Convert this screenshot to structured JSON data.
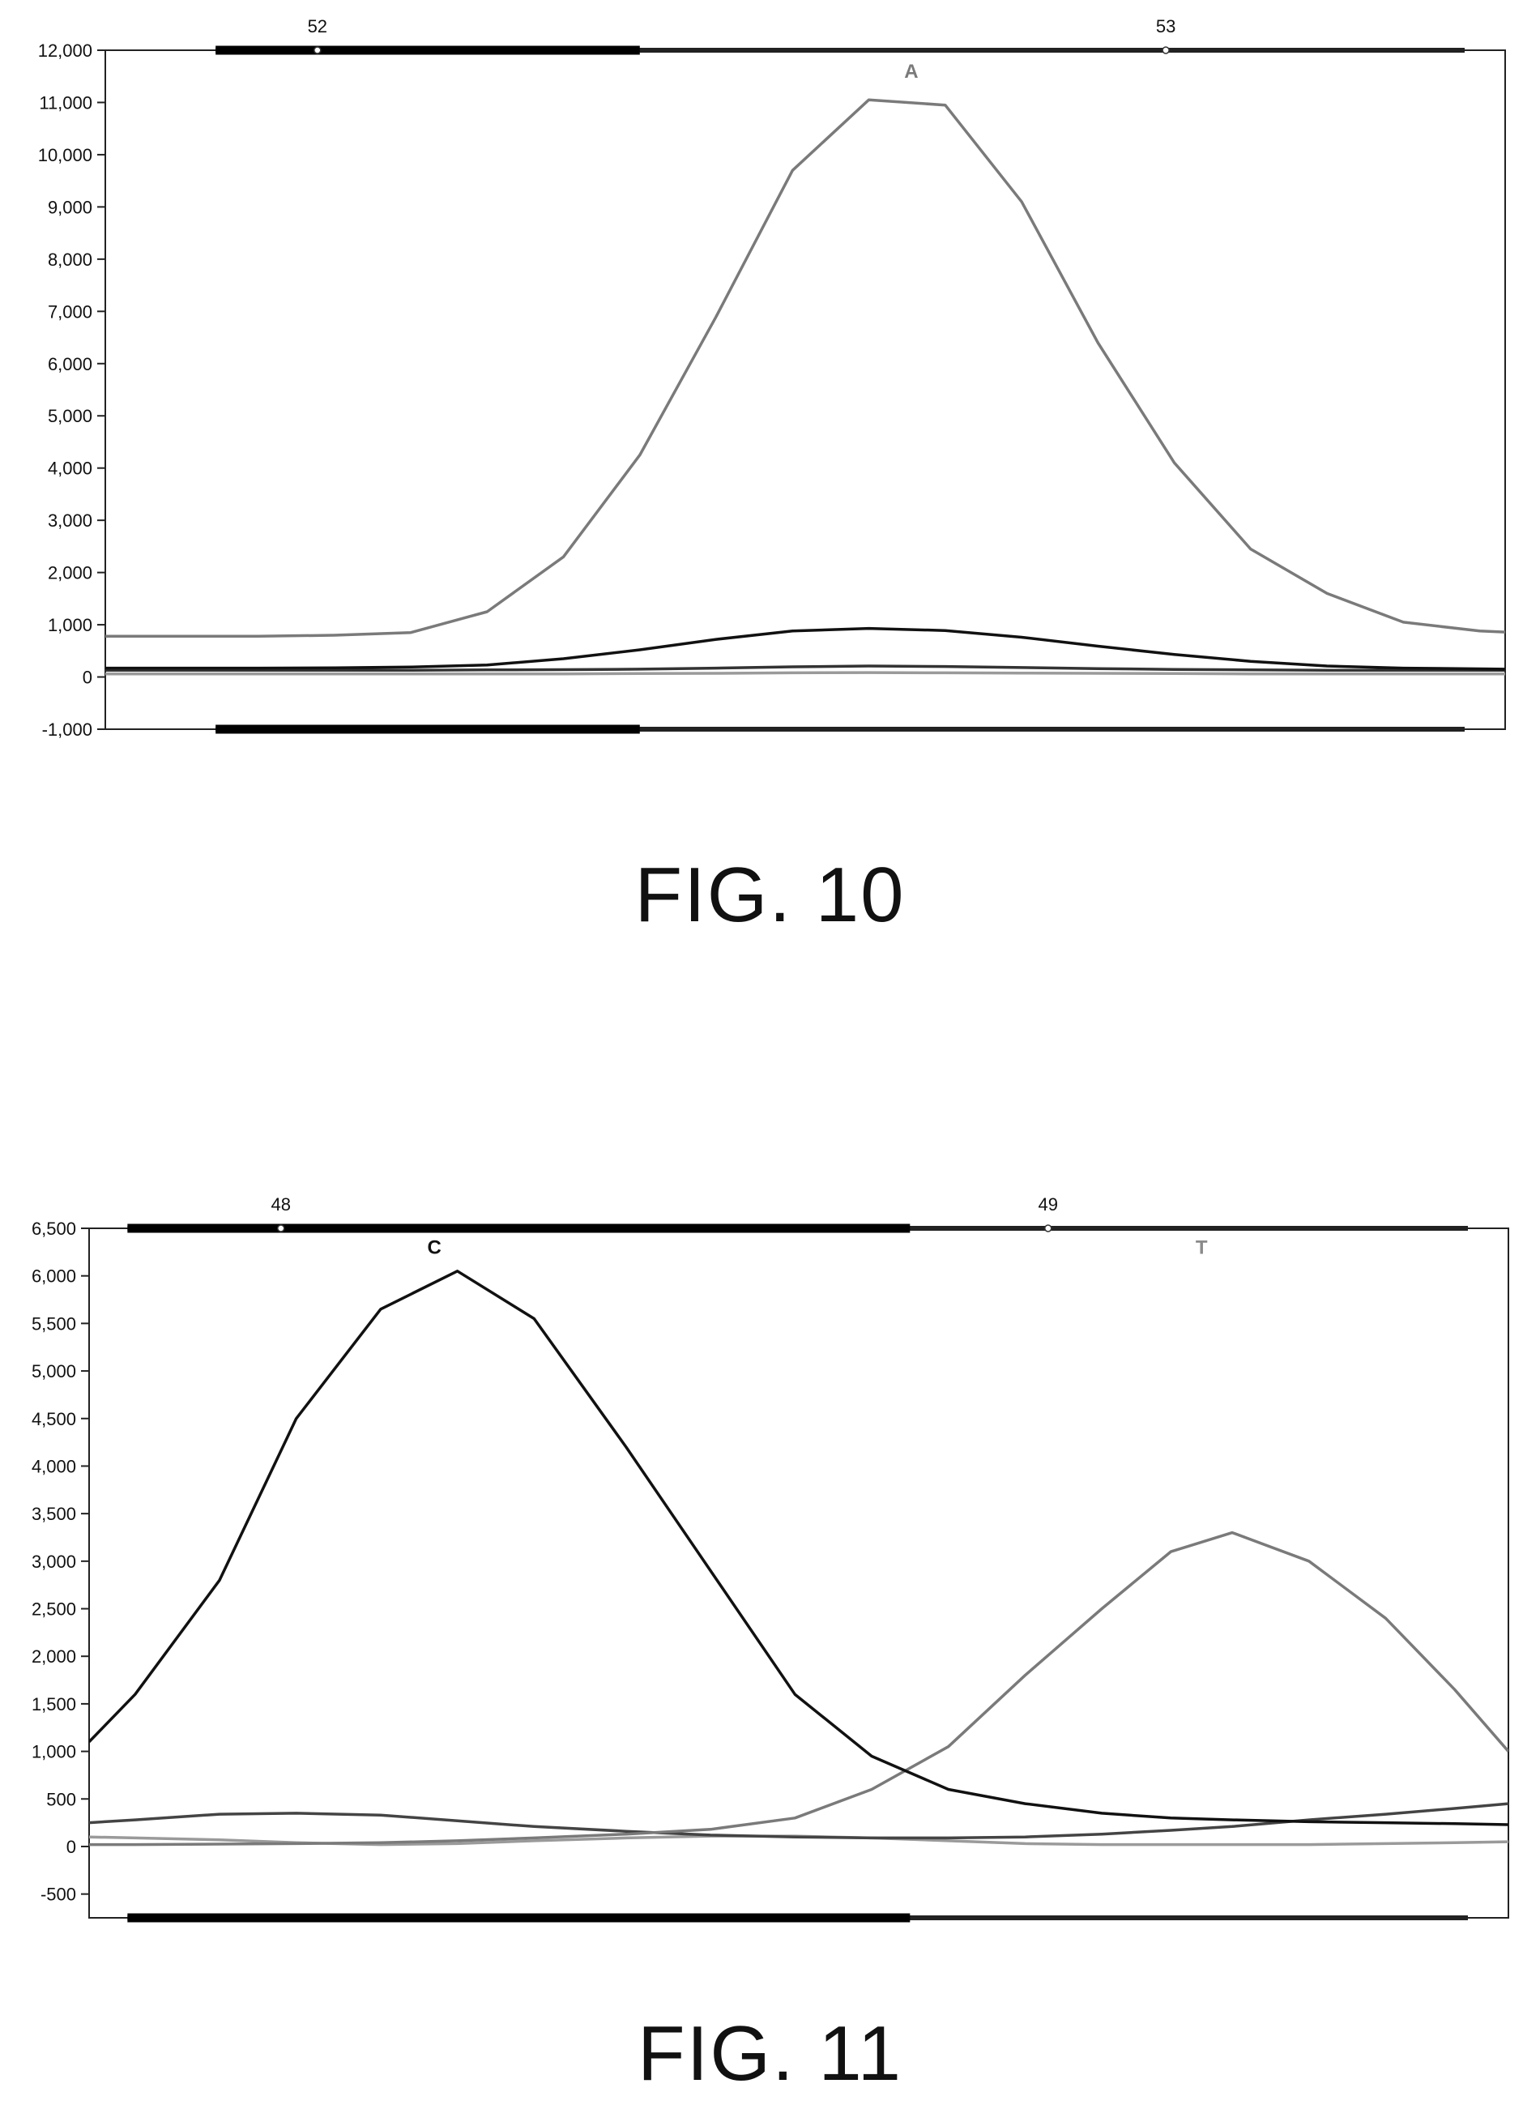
{
  "figures": [
    {
      "caption": "FIG. 10"
    },
    {
      "caption": "FIG. 11"
    }
  ],
  "chart_data": [
    {
      "type": "line",
      "title": "",
      "xlabel": "",
      "ylabel": "",
      "ylim": [
        -1000,
        12000
      ],
      "yticks": [
        -1000,
        0,
        1000,
        2000,
        3000,
        4000,
        5000,
        6000,
        7000,
        8000,
        9000,
        10000,
        11000,
        12000
      ],
      "ytick_labels": [
        "-1,000",
        "0",
        "1,000",
        "2,000",
        "3,000",
        "4,000",
        "5,000",
        "6,000",
        "7,000",
        "8,000",
        "9,000",
        "10,000",
        "11,000",
        "12,000"
      ],
      "top_axis": {
        "labels": [
          "52",
          "53"
        ],
        "xlim": [
          51.75,
          53.4
        ],
        "positions": [
          52.0,
          53.0
        ],
        "thick_band": [
          51.88,
          52.38
        ]
      },
      "peak_labels": [
        {
          "text": "A",
          "x": 52.7,
          "y": 11600,
          "color": "#7a7a7a"
        }
      ],
      "grid": false,
      "x": [
        51.75,
        51.84,
        51.93,
        52.02,
        52.11,
        52.2,
        52.29,
        52.38,
        52.47,
        52.56,
        52.65,
        52.74,
        52.83,
        52.92,
        53.01,
        53.1,
        53.19,
        53.28,
        53.37,
        53.4
      ],
      "series": [
        {
          "color": "#7a7a7a",
          "values": [
            780,
            780,
            780,
            800,
            850,
            1250,
            2300,
            4250,
            6900,
            9700,
            11050,
            10950,
            9100,
            6400,
            4100,
            2450,
            1600,
            1050,
            880,
            860
          ]
        },
        {
          "color": "#111111",
          "values": [
            170,
            170,
            170,
            175,
            190,
            230,
            350,
            520,
            720,
            880,
            930,
            890,
            760,
            590,
            430,
            300,
            210,
            170,
            155,
            150
          ]
        },
        {
          "color": "#333333",
          "values": [
            130,
            130,
            130,
            130,
            130,
            135,
            140,
            150,
            170,
            195,
            210,
            200,
            180,
            160,
            145,
            135,
            130,
            130,
            130,
            130
          ]
        },
        {
          "color": "#9a9a9a",
          "values": [
            60,
            60,
            60,
            60,
            60,
            60,
            60,
            65,
            70,
            80,
            85,
            80,
            75,
            70,
            65,
            60,
            60,
            60,
            60,
            60
          ]
        }
      ]
    },
    {
      "type": "line",
      "title": "",
      "xlabel": "",
      "ylabel": "",
      "ylim": [
        -750,
        6500
      ],
      "yticks": [
        -500,
        0,
        500,
        1000,
        1500,
        2000,
        2500,
        3000,
        3500,
        4000,
        4500,
        5000,
        5500,
        6000,
        6500
      ],
      "ytick_labels": [
        "-500",
        "0",
        "500",
        "1,000",
        "1,500",
        "2,000",
        "2,500",
        "3,000",
        "3,500",
        "4,000",
        "4,500",
        "5,000",
        "5,500",
        "6,000",
        "6,500"
      ],
      "top_axis": {
        "labels": [
          "48",
          "49"
        ],
        "xlim": [
          47.75,
          49.6
        ],
        "positions": [
          48.0,
          49.0
        ],
        "thick_band": [
          47.8,
          48.82
        ]
      },
      "peak_labels": [
        {
          "text": "C",
          "x": 48.2,
          "y": 6300,
          "color": "#111111"
        },
        {
          "text": "T",
          "x": 49.2,
          "y": 6300,
          "color": "#8a8a8a"
        }
      ],
      "grid": false,
      "x": [
        47.75,
        47.81,
        47.92,
        48.02,
        48.13,
        48.23,
        48.33,
        48.45,
        48.56,
        48.67,
        48.77,
        48.87,
        48.97,
        49.07,
        49.16,
        49.24,
        49.34,
        49.44,
        49.53,
        49.6
      ],
      "series": [
        {
          "color": "#111111",
          "values": [
            1100,
            1600,
            2800,
            4500,
            5650,
            6050,
            5550,
            4200,
            2900,
            1600,
            950,
            600,
            450,
            350,
            300,
            280,
            260,
            250,
            240,
            230
          ]
        },
        {
          "color": "#7a7a7a",
          "values": [
            20,
            20,
            25,
            30,
            40,
            60,
            90,
            130,
            180,
            300,
            600,
            1050,
            1800,
            2500,
            3100,
            3300,
            3000,
            2400,
            1650,
            1000
          ]
        },
        {
          "color": "#444444",
          "values": [
            250,
            280,
            340,
            350,
            330,
            270,
            210,
            160,
            120,
            100,
            90,
            90,
            100,
            130,
            170,
            210,
            280,
            340,
            400,
            450
          ]
        },
        {
          "color": "#9a9a9a",
          "values": [
            100,
            90,
            70,
            40,
            20,
            30,
            60,
            90,
            110,
            110,
            90,
            60,
            30,
            20,
            20,
            20,
            20,
            30,
            40,
            50
          ]
        }
      ]
    }
  ]
}
